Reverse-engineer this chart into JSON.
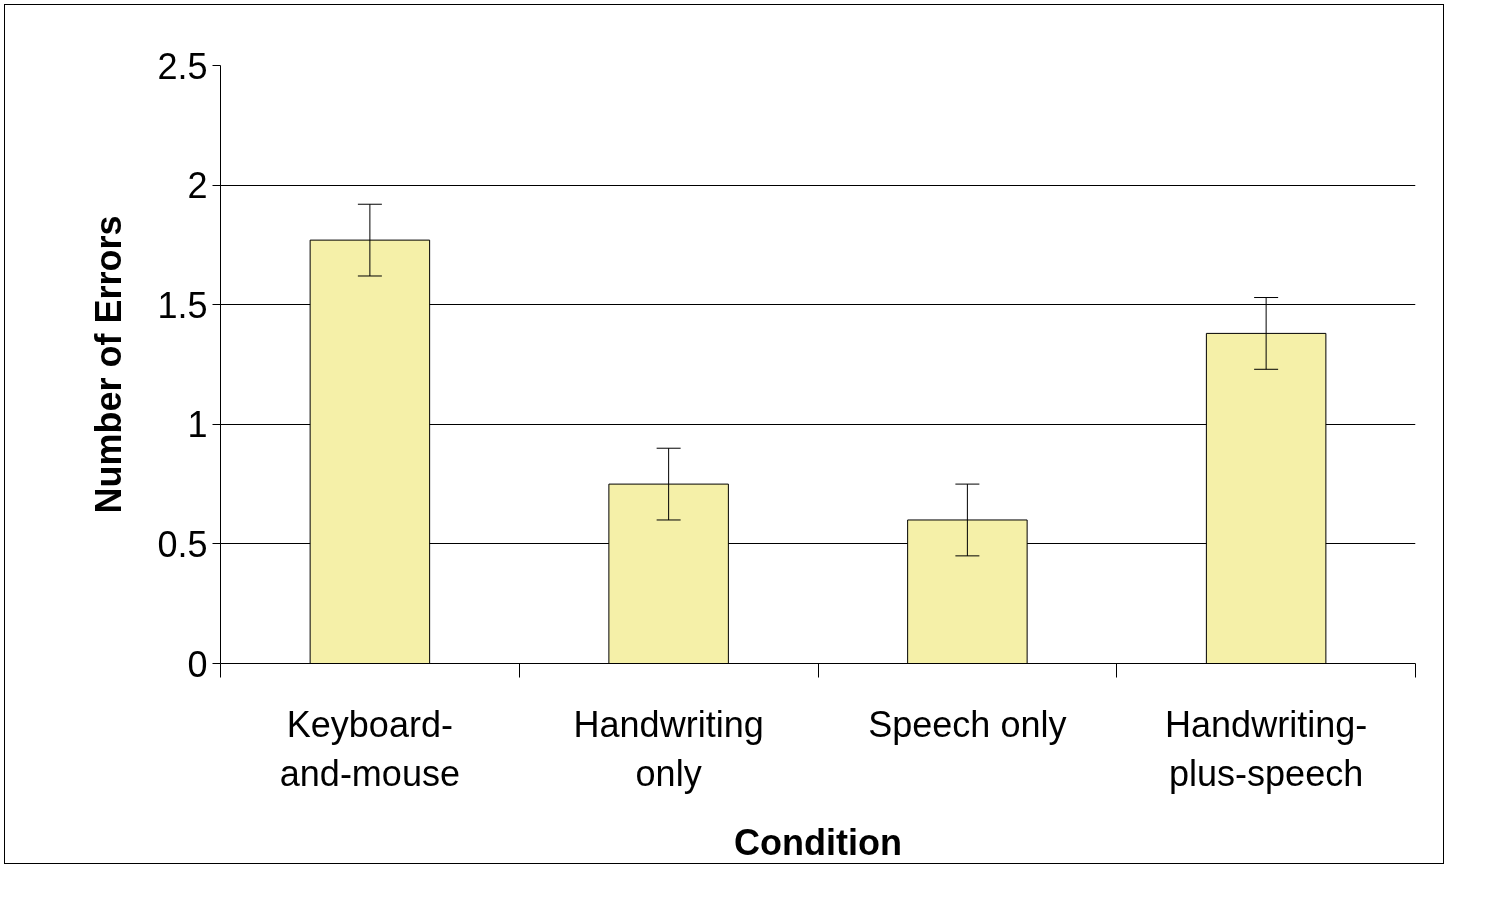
{
  "chart_data": {
    "type": "bar",
    "xlabel": "Condition",
    "ylabel": "Number of Errors",
    "categories": [
      "Keyboard-and-mouse",
      "Handwriting only",
      "Speech only",
      "Handwriting-plus-speech"
    ],
    "values": [
      1.77,
      0.75,
      0.6,
      1.38
    ],
    "errors": [
      0.15,
      0.15,
      0.15,
      0.15
    ],
    "color": "#f5f0a8",
    "ylim": [
      0,
      2.5
    ],
    "yticks": [
      0,
      0.5,
      1,
      1.5,
      2,
      2.5
    ],
    "grid": "y"
  }
}
